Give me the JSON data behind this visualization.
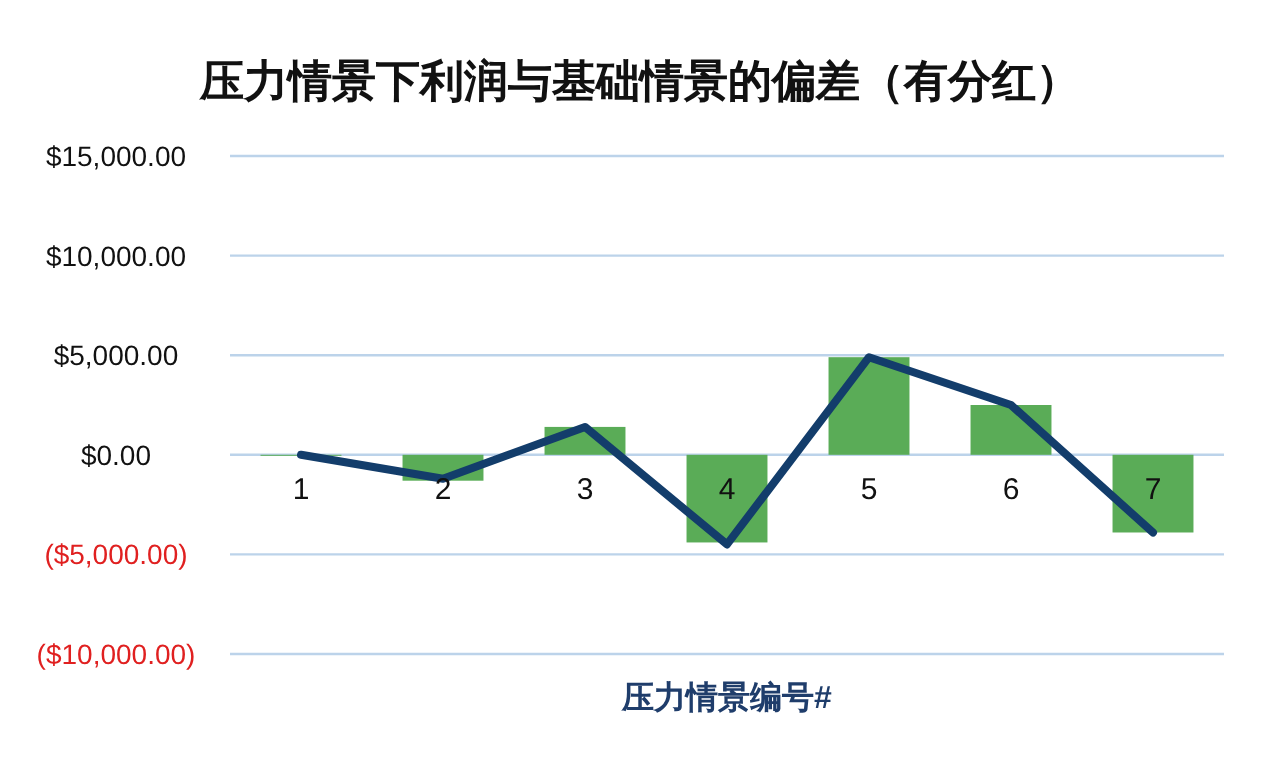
{
  "chart_data": {
    "type": "bar",
    "title": "压力情景下利润与基础情景的偏差（有分红）",
    "xlabel": "压力情景编号#",
    "categories": [
      "1",
      "2",
      "3",
      "4",
      "5",
      "6",
      "7"
    ],
    "series": [
      {
        "color": "#5aac57",
        "values": [
          0,
          -1300,
          1400,
          -4400,
          4900,
          2500,
          -3900
        ]
      },
      {
        "type": "line",
        "color": "#133d6b",
        "values": [
          0,
          -1200,
          1400,
          -4500,
          4900,
          2500,
          -3900
        ]
      }
    ],
    "ylim": [
      -10000,
      15000
    ],
    "yticks": [
      {
        "value": -10000,
        "label": "($10,000.00)"
      },
      {
        "value": -5000,
        "label": "($5,000.00)"
      },
      {
        "value": 0,
        "label": "$0.00"
      },
      {
        "value": 5000,
        "label": "$5,000.00"
      },
      {
        "value": 10000,
        "label": "$10,000.00"
      },
      {
        "value": 15000,
        "label": "$15,000.00"
      }
    ],
    "grid": "y",
    "marker": "none",
    "line_style": "solid"
  }
}
